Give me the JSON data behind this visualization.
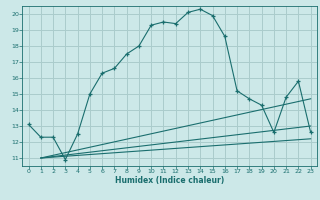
{
  "bg_color": "#cce8e8",
  "grid_color": "#aacccc",
  "line_color": "#1a6e6e",
  "xlabel": "Humidex (Indice chaleur)",
  "xlim": [
    -0.5,
    23.5
  ],
  "ylim": [
    10.5,
    20.5
  ],
  "yticks": [
    11,
    12,
    13,
    14,
    15,
    16,
    17,
    18,
    19,
    20
  ],
  "xticks": [
    0,
    1,
    2,
    3,
    4,
    5,
    6,
    7,
    8,
    9,
    10,
    11,
    12,
    13,
    14,
    15,
    16,
    17,
    18,
    19,
    20,
    21,
    22,
    23
  ],
  "main_x": [
    0,
    1,
    2,
    3,
    4,
    5,
    6,
    7,
    8,
    9,
    10,
    11,
    12,
    13,
    14,
    15,
    16,
    17,
    18,
    19,
    20,
    21,
    22,
    23
  ],
  "main_y": [
    13.1,
    12.3,
    12.3,
    10.9,
    12.5,
    15.0,
    16.3,
    16.6,
    17.5,
    18.0,
    19.3,
    19.5,
    19.4,
    20.1,
    20.3,
    19.9,
    18.6,
    15.2,
    14.7,
    14.3,
    12.6,
    14.8,
    15.8,
    12.6
  ],
  "line2_x": [
    1,
    23
  ],
  "line2_y": [
    11.0,
    14.7
  ],
  "line3_x": [
    1,
    23
  ],
  "line3_y": [
    11.0,
    13.0
  ],
  "line4_x": [
    1,
    23
  ],
  "line4_y": [
    11.0,
    12.2
  ]
}
